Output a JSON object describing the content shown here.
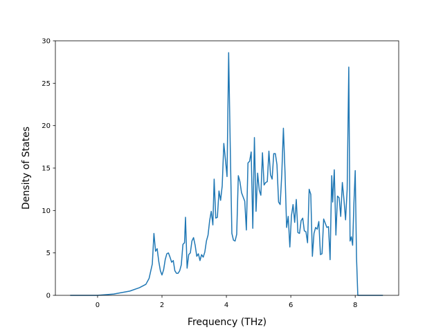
{
  "chart_data": {
    "type": "line",
    "xlabel": "Frequency (THz)",
    "ylabel": "Density of States",
    "x": [
      -0.85,
      0,
      0.5,
      1.0,
      1.3,
      1.5,
      1.6,
      1.7,
      1.75,
      1.8,
      1.85,
      1.9,
      1.95,
      2.0,
      2.05,
      2.1,
      2.15,
      2.2,
      2.25,
      2.3,
      2.35,
      2.4,
      2.45,
      2.5,
      2.55,
      2.6,
      2.65,
      2.7,
      2.73,
      2.78,
      2.83,
      2.88,
      2.93,
      2.98,
      3.03,
      3.08,
      3.13,
      3.18,
      3.23,
      3.28,
      3.33,
      3.38,
      3.43,
      3.48,
      3.53,
      3.58,
      3.62,
      3.67,
      3.72,
      3.77,
      3.82,
      3.87,
      3.92,
      3.97,
      4.02,
      4.07,
      4.12,
      4.17,
      4.22,
      4.27,
      4.32,
      4.37,
      4.42,
      4.47,
      4.52,
      4.57,
      4.62,
      4.67,
      4.72,
      4.77,
      4.82,
      4.87,
      4.92,
      4.97,
      5.02,
      5.07,
      5.12,
      5.17,
      5.22,
      5.27,
      5.32,
      5.37,
      5.42,
      5.47,
      5.52,
      5.57,
      5.62,
      5.67,
      5.72,
      5.77,
      5.82,
      5.87,
      5.92,
      5.97,
      6.02,
      6.07,
      6.12,
      6.17,
      6.22,
      6.27,
      6.32,
      6.37,
      6.42,
      6.47,
      6.52,
      6.57,
      6.62,
      6.67,
      6.72,
      6.77,
      6.82,
      6.87,
      6.92,
      6.97,
      7.02,
      7.07,
      7.12,
      7.17,
      7.22,
      7.27,
      7.3,
      7.35,
      7.4,
      7.45,
      7.5,
      7.55,
      7.6,
      7.65,
      7.7,
      7.75,
      7.8,
      7.84,
      7.88,
      7.92,
      7.96,
      8.0,
      8.04,
      8.08,
      8.86
    ],
    "series": [
      {
        "color": "#1f77b4",
        "values": [
          0,
          0,
          0.15,
          0.5,
          0.9,
          1.3,
          2.0,
          3.7,
          7.3,
          5.2,
          5.5,
          4.0,
          2.9,
          2.4,
          3.0,
          4.2,
          4.9,
          5.0,
          4.5,
          3.9,
          4.1,
          2.9,
          2.6,
          2.6,
          2.9,
          3.6,
          6.0,
          6.2,
          9.2,
          3.2,
          4.8,
          5.0,
          6.4,
          6.8,
          5.9,
          4.6,
          4.9,
          4.1,
          4.8,
          4.5,
          5.1,
          6.4,
          7.1,
          8.8,
          9.9,
          8.3,
          13.7,
          9.1,
          9.2,
          12.3,
          11.2,
          12.9,
          17.9,
          16.0,
          14.0,
          28.6,
          17.5,
          7.3,
          6.5,
          6.4,
          7.2,
          14.1,
          13.4,
          12.1,
          11.6,
          11.1,
          7.7,
          15.6,
          15.8,
          16.9,
          7.9,
          18.6,
          9.9,
          14.4,
          12.4,
          11.8,
          16.8,
          13.0,
          13.3,
          13.4,
          17.0,
          14.2,
          13.7,
          16.7,
          16.7,
          15.4,
          11.0,
          10.7,
          14.3,
          19.7,
          14.5,
          8.0,
          9.3,
          5.7,
          9.4,
          10.7,
          8.6,
          11.3,
          7.4,
          7.3,
          8.8,
          9.1,
          7.6,
          7.5,
          6.2,
          12.5,
          11.9,
          4.6,
          7.3,
          8.0,
          7.8,
          8.7,
          4.8,
          4.9,
          9.0,
          8.5,
          8.0,
          8.1,
          4.2,
          14.1,
          11.0,
          14.8,
          7.1,
          11.7,
          11.5,
          9.3,
          13.3,
          11.3,
          8.9,
          12.5,
          26.9,
          6.4,
          6.9,
          5.9,
          10.9,
          14.7,
          4.5,
          0,
          0
        ]
      }
    ],
    "xlim": [
      -1.31,
      9.35
    ],
    "ylim": [
      0,
      30
    ],
    "xticks": [
      0,
      2,
      4,
      6,
      8
    ],
    "yticks": [
      0,
      5,
      10,
      15,
      20,
      25,
      30
    ]
  }
}
